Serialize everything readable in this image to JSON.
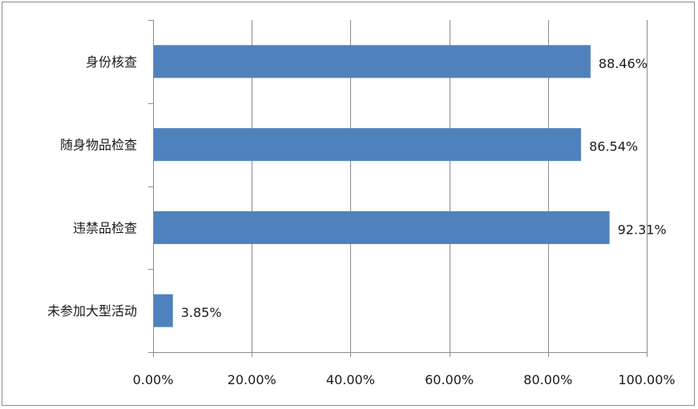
{
  "chart_data": {
    "type": "bar",
    "orientation": "horizontal",
    "categories": [
      "身份核查",
      "随身物品检查",
      "违禁品检查",
      "未参加大型活动"
    ],
    "values": [
      88.46,
      86.54,
      92.31,
      3.85
    ],
    "value_labels": [
      "88.46%",
      "86.54%",
      "92.31%",
      "3.85%"
    ],
    "xlim": [
      0,
      100
    ],
    "x_ticks": [
      0,
      20,
      40,
      60,
      80,
      100
    ],
    "x_tick_labels": [
      "0.00%",
      "20.00%",
      "40.00%",
      "60.00%",
      "80.00%",
      "100.00%"
    ],
    "title": "",
    "xlabel": "",
    "ylabel": "",
    "grid": "vertical",
    "legend": "none",
    "bar_color": "#4f81bd",
    "grid_color": "#8c8c8c"
  }
}
